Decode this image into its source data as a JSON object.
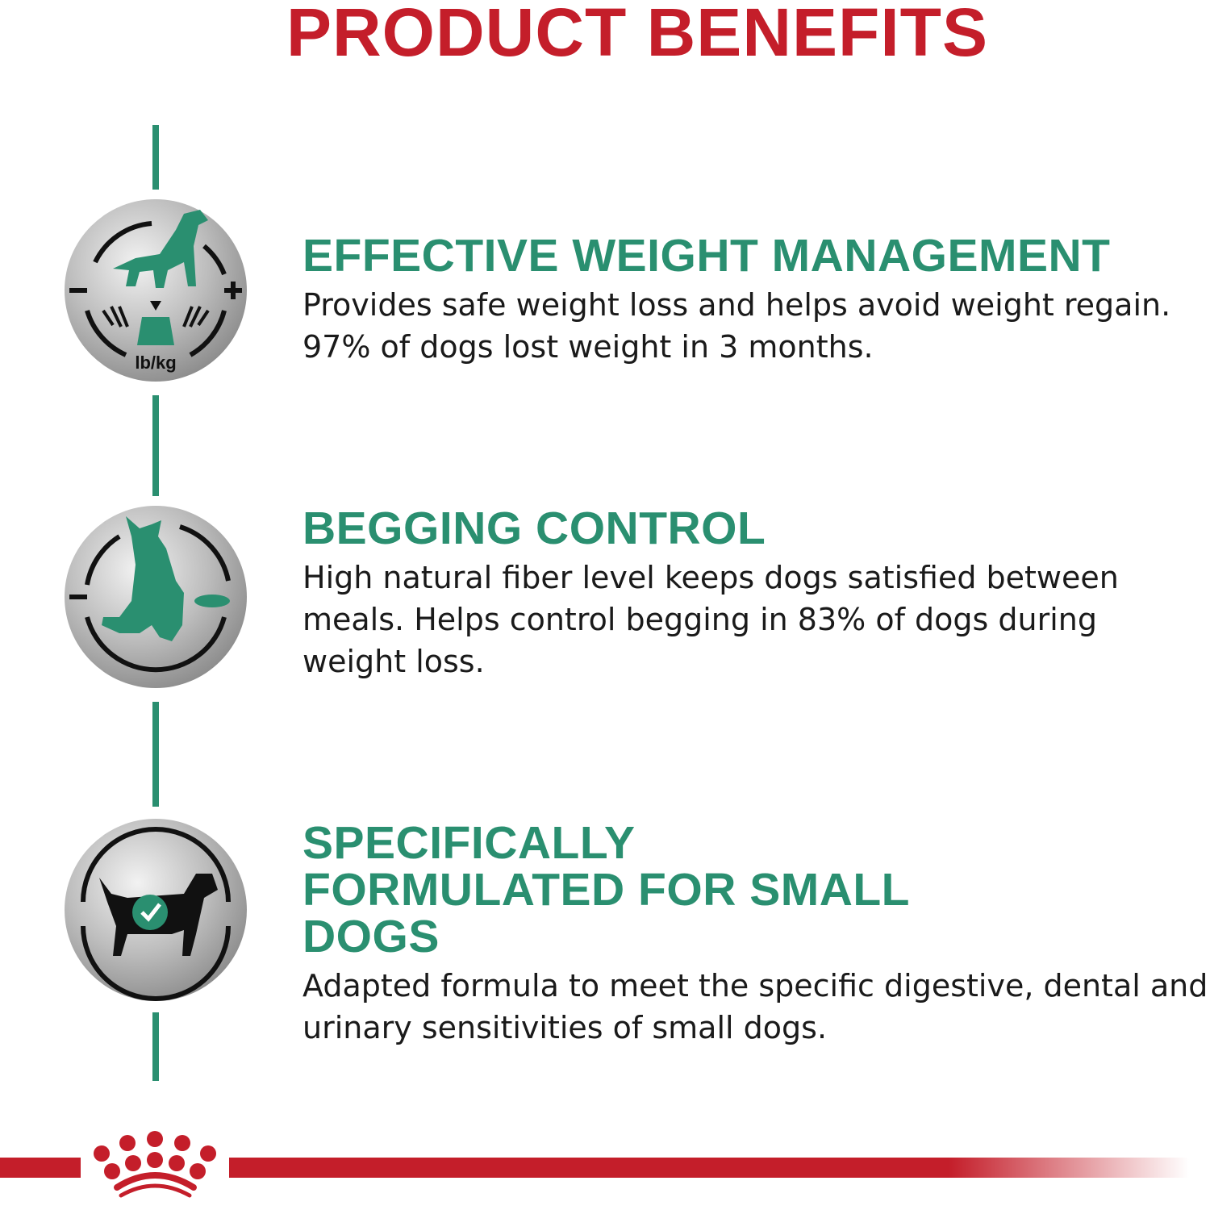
{
  "title": "PRODUCT BENEFITS",
  "colors": {
    "brand_red": "#c41e2a",
    "accent_green": "#2a8f70",
    "text": "#1a1a1a"
  },
  "benefits": [
    {
      "icon": "dog-weight-scale-icon",
      "icon_text": "lb/kg",
      "heading": "EFFECTIVE WEIGHT MANAGEMENT",
      "text": "Provides safe weight loss and helps avoid weight regain. 97% of dogs lost weight in 3 months."
    },
    {
      "icon": "begging-dog-bowl-icon",
      "heading": "BEGGING CONTROL",
      "text": "High natural fiber level keeps dogs satisfied between meals. Helps control begging in 83% of dogs during weight loss."
    },
    {
      "icon": "small-dog-check-icon",
      "heading": "SPECIFICALLY FORMULATED FOR SMALL DOGS",
      "text": "Adapted formula to meet the specific digestive, dental and urinary sensitivities of small dogs."
    }
  ],
  "footer": {
    "logo": "royal-canin-crown-logo"
  }
}
